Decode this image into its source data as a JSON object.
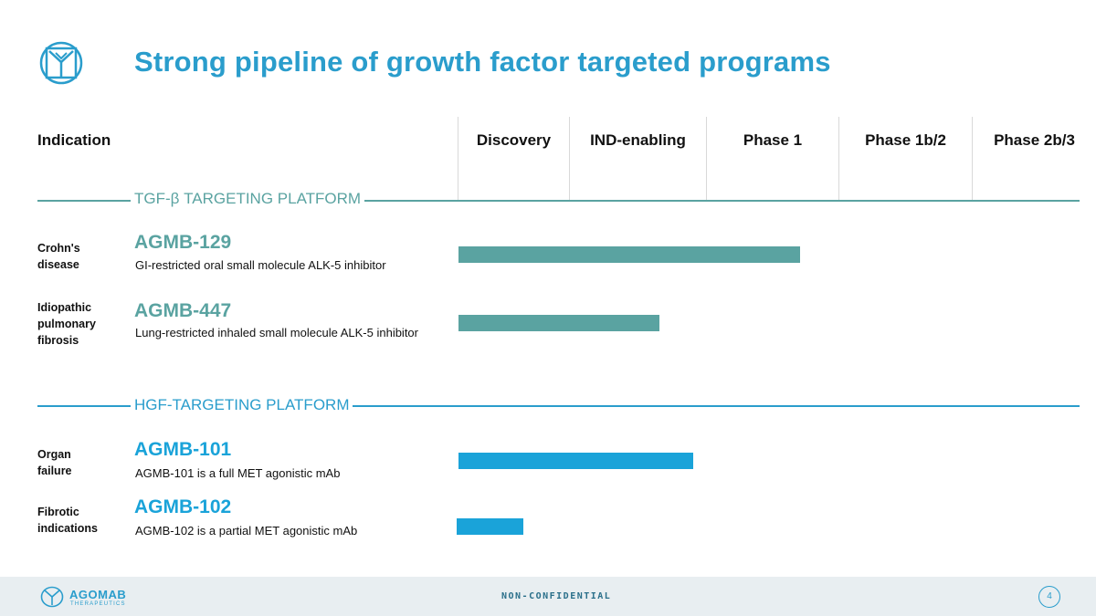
{
  "title": "Strong pipeline of growth factor targeted programs",
  "colors": {
    "title": "#2a9dcc",
    "tgf": "#5aa3a1",
    "hgf": "#1aa3d9",
    "line_tgf": "#5aa3a1",
    "line_hgf": "#2a9dcc"
  },
  "header": {
    "indication": "Indication",
    "phases": [
      "Discovery",
      "IND-enabling",
      "Phase 1",
      "Phase 1b/2",
      "Phase 2b/3"
    ]
  },
  "platforms": [
    {
      "label": "TGF-β TARGETING PLATFORM",
      "programs": [
        {
          "indication": [
            "Crohn's",
            "disease"
          ],
          "name": "AGMB-129",
          "description": "GI-restricted oral small molecule ALK-5 inhibitor",
          "progress_phases": 2.7
        },
        {
          "indication": [
            "Idiopathic",
            "pulmonary",
            "fibrosis"
          ],
          "name": "AGMB-447",
          "description": "Lung-restricted inhaled small molecule ALK-5 inhibitor",
          "progress_phases": 1.65
        }
      ]
    },
    {
      "label": "HGF-TARGETING PLATFORM",
      "programs": [
        {
          "indication": [
            "Organ",
            "failure"
          ],
          "name": "AGMB-101",
          "description": "AGMB-101 is a full MET agonistic mAb",
          "progress_phases": 1.9
        },
        {
          "indication": [
            "Fibrotic",
            "indications"
          ],
          "name": "AGMB-102",
          "description": "AGMB-102 is a partial MET agonistic mAb",
          "progress_phases": 0.58
        }
      ]
    }
  ],
  "footer": {
    "brand": "AGOMAB",
    "brand_sub": "THERAPEUTICS",
    "confidentiality": "NON-CONFIDENTIAL",
    "page_number": "4"
  }
}
